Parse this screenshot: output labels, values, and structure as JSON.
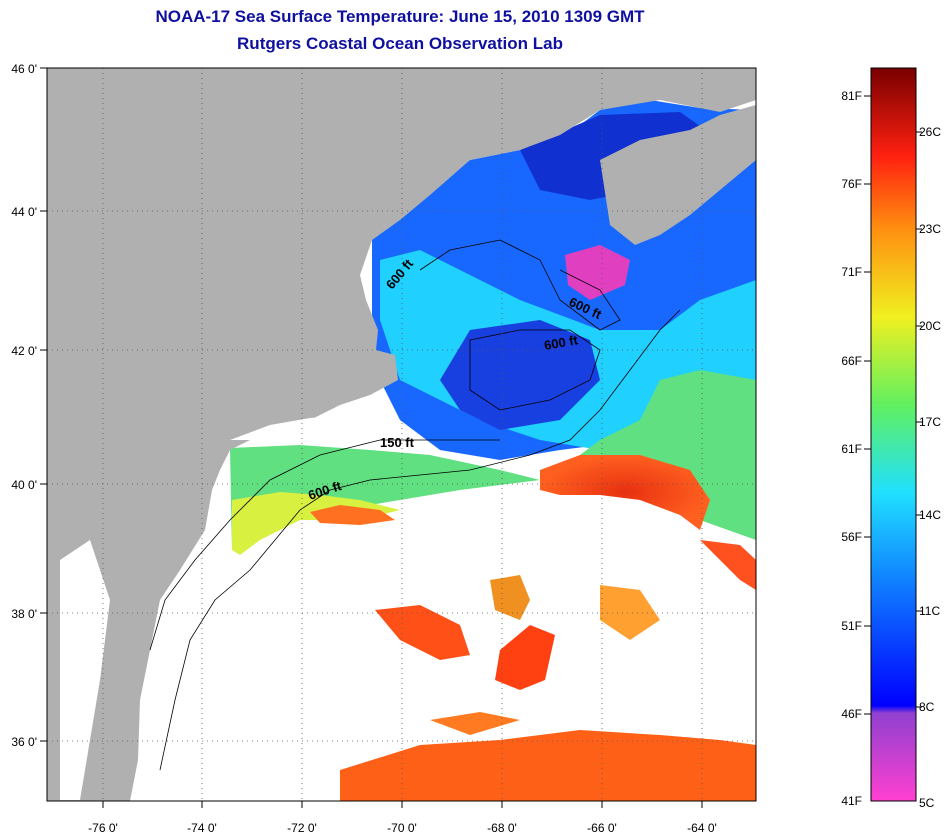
{
  "title": {
    "line1": "NOAA-17 Sea Surface Temperature:  June 15, 2010 1309 GMT",
    "line2": "Rutgers Coastal Ocean Observation Lab"
  },
  "axes": {
    "longitude_ticks": [
      "-76 0'",
      "-74 0'",
      "-72 0'",
      "-70 0'",
      "-68 0'",
      "-66 0'",
      "-64 0'"
    ],
    "latitude_ticks": [
      "46 0'",
      "44 0'",
      "42 0'",
      "40 0'",
      "38 0'",
      "36 0'"
    ]
  },
  "contour_labels": [
    "600 ft",
    "600 ft",
    "600 ft",
    "150 ft",
    "600 ft"
  ],
  "colorbar": {
    "fahrenheit": [
      "81F",
      "76F",
      "71F",
      "66F",
      "61F",
      "56F",
      "51F",
      "46F",
      "41F"
    ],
    "celsius": [
      "26C",
      "23C",
      "20C",
      "17C",
      "14C",
      "11C",
      "8C",
      "5C"
    ]
  },
  "colors": {
    "land": "#b0b0b0",
    "title": "#1010a0",
    "cold": "#ff40d0",
    "cool": "#1030ff",
    "mild": "#20e0ff",
    "warm": "#f0f020",
    "hot": "#ff3010",
    "hottest": "#780000"
  }
}
